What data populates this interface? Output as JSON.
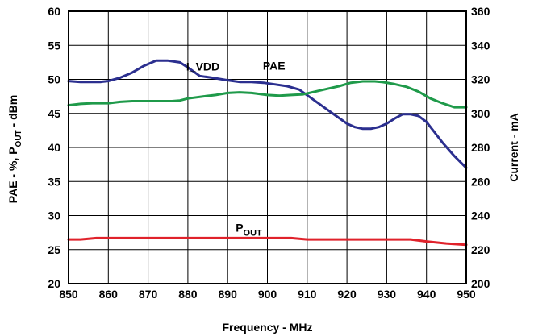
{
  "chart_data": {
    "type": "line",
    "xlabel": "Frequency - MHz",
    "ylabel_left": "PAE - %, P_OUT - dBm",
    "ylabel_left_parts": [
      "PAE - %, P",
      "OUT",
      " - dBm"
    ],
    "ylabel_right": "Current - mA",
    "xlim": [
      850,
      950
    ],
    "ylim_left": [
      20,
      60
    ],
    "ylim_right": [
      200,
      360
    ],
    "x_ticks": [
      850,
      860,
      870,
      880,
      890,
      900,
      910,
      920,
      930,
      940,
      950
    ],
    "y_left_ticks": [
      20,
      25,
      30,
      35,
      40,
      45,
      50,
      55,
      60
    ],
    "y_right_ticks": [
      200,
      220,
      240,
      260,
      280,
      300,
      320,
      340,
      360
    ],
    "grid": true,
    "series": [
      {
        "name": "I_VDD",
        "axis": "right",
        "color": "#2b2f8f",
        "x": [
          850,
          853,
          855,
          858,
          860,
          863,
          866,
          869,
          872,
          875,
          878,
          880,
          883,
          886,
          890,
          893,
          896,
          899,
          902,
          905,
          908,
          911,
          914,
          917,
          920,
          922,
          924,
          926,
          928,
          930,
          932,
          934,
          936,
          938,
          940,
          942,
          944,
          947,
          950
        ],
        "y": [
          319,
          318.5,
          318.5,
          318.5,
          319,
          321,
          324,
          328,
          331,
          331,
          330,
          327,
          322,
          321,
          319.5,
          318.5,
          318.5,
          318,
          317,
          316,
          314,
          309,
          304,
          299,
          294,
          292,
          291,
          291,
          292,
          294,
          297,
          299.5,
          299.5,
          298.5,
          295,
          289,
          283,
          275,
          268
        ]
      },
      {
        "name": "PAE",
        "axis": "left",
        "color": "#1f9a4a",
        "x": [
          850,
          853,
          856,
          858,
          860,
          863,
          866,
          870,
          874,
          876,
          878,
          880,
          884,
          887,
          890,
          893,
          896,
          900,
          903,
          906,
          909,
          912,
          915,
          918,
          921,
          924,
          927,
          929,
          932,
          935,
          938,
          941,
          944,
          947,
          950
        ],
        "y": [
          46.2,
          46.4,
          46.5,
          46.5,
          46.5,
          46.7,
          46.8,
          46.8,
          46.8,
          46.8,
          46.9,
          47.2,
          47.5,
          47.7,
          48.0,
          48.1,
          48.0,
          47.7,
          47.6,
          47.7,
          47.8,
          48.2,
          48.6,
          49.0,
          49.5,
          49.7,
          49.7,
          49.6,
          49.3,
          48.9,
          48.2,
          47.2,
          46.5,
          45.9,
          45.9
        ]
      },
      {
        "name": "P_OUT",
        "axis": "left",
        "color": "#e0222b",
        "x": [
          850,
          853,
          857,
          860,
          870,
          880,
          890,
          900,
          906,
          910,
          920,
          930,
          936,
          940,
          945,
          950
        ],
        "y": [
          26.5,
          26.5,
          26.7,
          26.7,
          26.7,
          26.7,
          26.7,
          26.7,
          26.7,
          26.5,
          26.5,
          26.5,
          26.5,
          26.2,
          25.9,
          25.7
        ]
      }
    ],
    "annotations": [
      {
        "id": "i_vdd",
        "text": "I_VDD",
        "series": "I_VDD"
      },
      {
        "id": "pae",
        "text": "PAE",
        "series": "PAE"
      },
      {
        "id": "pout",
        "text": "P",
        "sub": "OUT",
        "series": "P_OUT"
      }
    ]
  }
}
